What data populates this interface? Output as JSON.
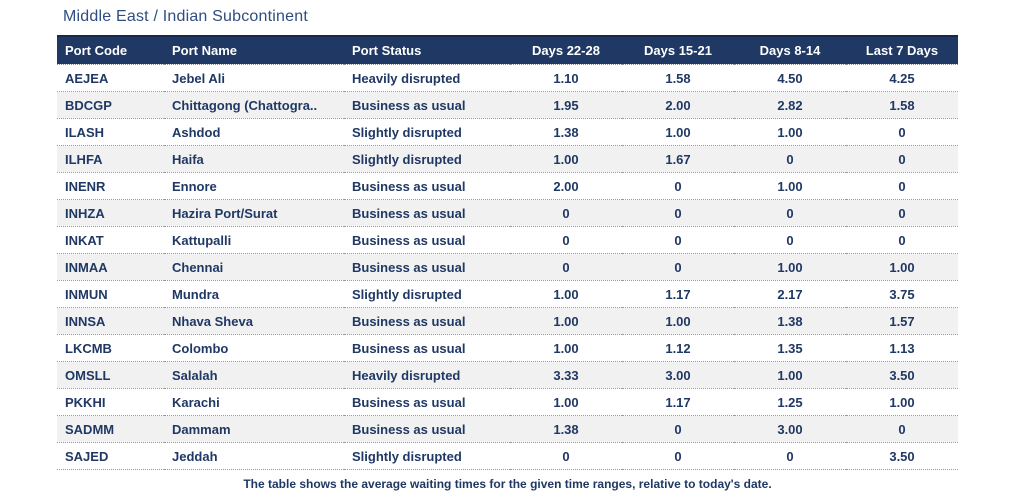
{
  "title": "Middle East / Indian Subcontinent",
  "footer": "The table shows the average waiting times for the given time ranges, relative to today's date.",
  "colors": {
    "header_bg": "#1f3864",
    "header_text": "#ffffff",
    "body_text": "#1f3864",
    "title_text": "#2f4d80",
    "alt_row_bg": "#f1f1f1",
    "row_divider": "#9a9a9a"
  },
  "chart_data": {
    "type": "table",
    "title": "Middle East / Indian Subcontinent",
    "columns": [
      "Port Code",
      "Port Name",
      "Port Status",
      "Days 22-28",
      "Days 15-21",
      "Days 8-14",
      "Last 7 Days"
    ],
    "rows": [
      [
        "AEJEA",
        "Jebel Ali",
        "Heavily disrupted",
        "1.10",
        "1.58",
        "4.50",
        "4.25"
      ],
      [
        "BDCGP",
        "Chittagong (Chattogra..",
        "Business as usual",
        "1.95",
        "2.00",
        "2.82",
        "1.58"
      ],
      [
        "ILASH",
        "Ashdod",
        "Slightly disrupted",
        "1.38",
        "1.00",
        "1.00",
        "0"
      ],
      [
        "ILHFA",
        "Haifa",
        "Slightly disrupted",
        "1.00",
        "1.67",
        "0",
        "0"
      ],
      [
        "INENR",
        "Ennore",
        "Business as usual",
        "2.00",
        "0",
        "1.00",
        "0"
      ],
      [
        "INHZA",
        "Hazira Port/Surat",
        "Business as usual",
        "0",
        "0",
        "0",
        "0"
      ],
      [
        "INKAT",
        "Kattupalli",
        "Business as usual",
        "0",
        "0",
        "0",
        "0"
      ],
      [
        "INMAA",
        "Chennai",
        "Business as usual",
        "0",
        "0",
        "1.00",
        "1.00"
      ],
      [
        "INMUN",
        "Mundra",
        "Slightly disrupted",
        "1.00",
        "1.17",
        "2.17",
        "3.75"
      ],
      [
        "INNSA",
        "Nhava Sheva",
        "Business as usual",
        "1.00",
        "1.00",
        "1.38",
        "1.57"
      ],
      [
        "LKCMB",
        "Colombo",
        "Business as usual",
        "1.00",
        "1.12",
        "1.35",
        "1.13"
      ],
      [
        "OMSLL",
        "Salalah",
        "Heavily disrupted",
        "3.33",
        "3.00",
        "1.00",
        "3.50"
      ],
      [
        "PKKHI",
        "Karachi",
        "Business as usual",
        "1.00",
        "1.17",
        "1.25",
        "1.00"
      ],
      [
        "SADMM",
        "Dammam",
        "Business as usual",
        "1.38",
        "0",
        "3.00",
        "0"
      ],
      [
        "SAJED",
        "Jeddah",
        "Slightly disrupted",
        "0",
        "0",
        "0",
        "3.50"
      ]
    ],
    "caption": "The table shows the average waiting times for the given time ranges, relative to today's date.",
    "layout": {
      "column_alignments": [
        "left",
        "left",
        "left",
        "center",
        "center",
        "center",
        "center"
      ],
      "alternating_rows": true
    }
  }
}
